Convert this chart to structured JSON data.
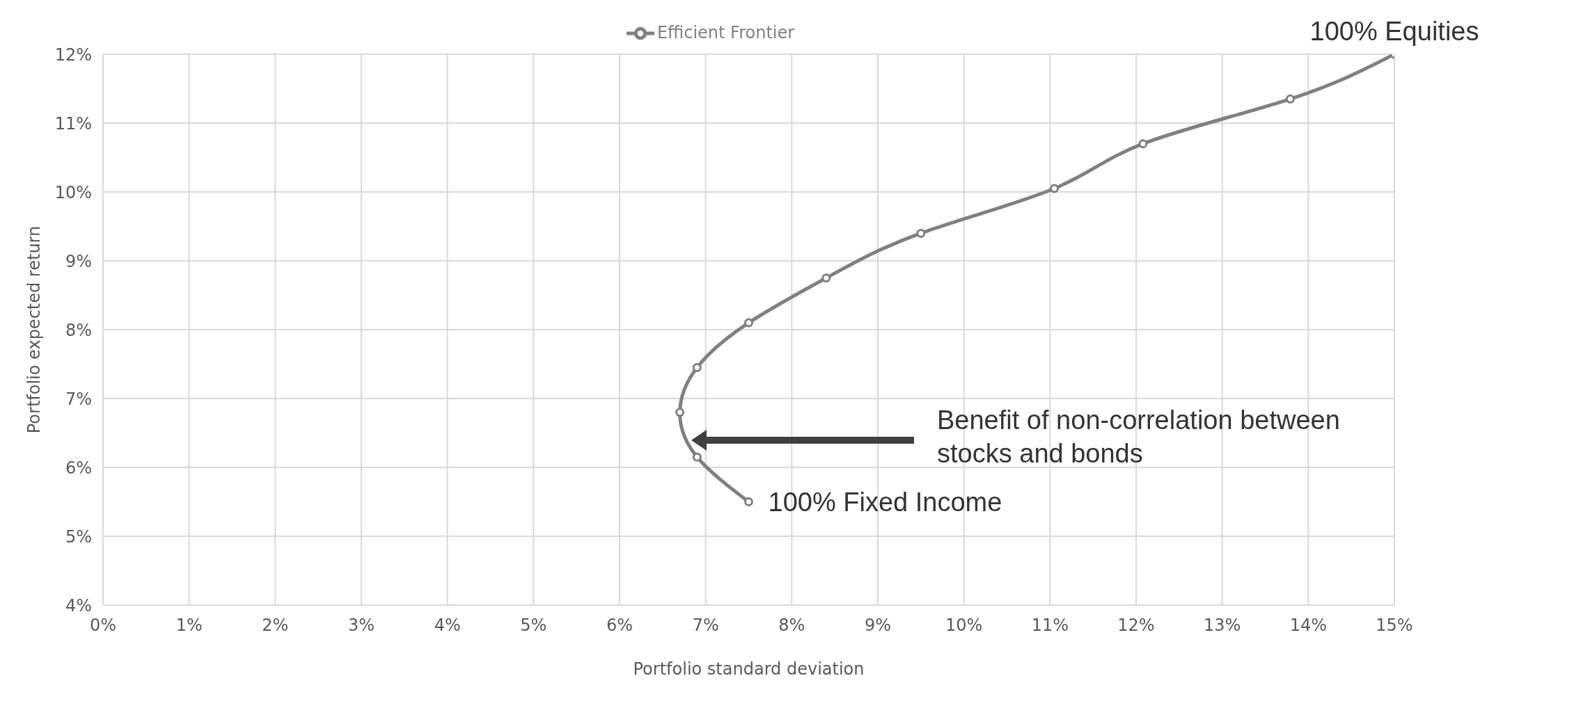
{
  "chart_data": {
    "type": "line",
    "xlabel": "Portfolio standard deviation",
    "ylabel": "Portfolio expected return",
    "x": [
      7.5,
      6.9,
      6.7,
      6.9,
      7.5,
      8.4,
      9.5,
      11.05,
      12.08,
      13.79,
      15
    ],
    "series": [
      {
        "name": "Efficient Frontier",
        "color": "#808080",
        "values": [
          5.5,
          6.15,
          6.8,
          7.45,
          8.1,
          8.75,
          9.4,
          10.05,
          10.7,
          11.35,
          12
        ]
      }
    ],
    "xlim": [
      0,
      15
    ],
    "xticks": [
      {
        "value": 0,
        "label": "0%"
      },
      {
        "value": 1,
        "label": "1%"
      },
      {
        "value": 2,
        "label": "2%"
      },
      {
        "value": 3,
        "label": "3%"
      },
      {
        "value": 4,
        "label": "4%"
      },
      {
        "value": 5,
        "label": "5%"
      },
      {
        "value": 6,
        "label": "6%"
      },
      {
        "value": 7,
        "label": "7%"
      },
      {
        "value": 8,
        "label": "8%"
      },
      {
        "value": 9,
        "label": "9%"
      },
      {
        "value": 10,
        "label": "10%"
      },
      {
        "value": 11,
        "label": "11%"
      },
      {
        "value": 12,
        "label": "12%"
      },
      {
        "value": 13,
        "label": "13%"
      },
      {
        "value": 14,
        "label": "14%"
      },
      {
        "value": 15,
        "label": "15%"
      }
    ],
    "ylim": [
      4,
      12
    ],
    "yticks": [
      {
        "value": 4,
        "label": "4%"
      },
      {
        "value": 5,
        "label": "5%"
      },
      {
        "value": 6,
        "label": "6%"
      },
      {
        "value": 7,
        "label": "7%"
      },
      {
        "value": 8,
        "label": "8%"
      },
      {
        "value": 9,
        "label": "9%"
      },
      {
        "value": 10,
        "label": "10%"
      },
      {
        "value": 11,
        "label": "11%"
      },
      {
        "value": 12,
        "label": "12%"
      }
    ],
    "annotations": [
      {
        "text": "100% Equities",
        "x": 15,
        "y": 12
      },
      {
        "text": "100% Fixed Income",
        "x": 7.5,
        "y": 5.5
      },
      "Benefit of non-correlation between stocks and bonds"
    ],
    "grid": true,
    "legend": "top",
    "marker": "circle",
    "line_style": "solid"
  }
}
